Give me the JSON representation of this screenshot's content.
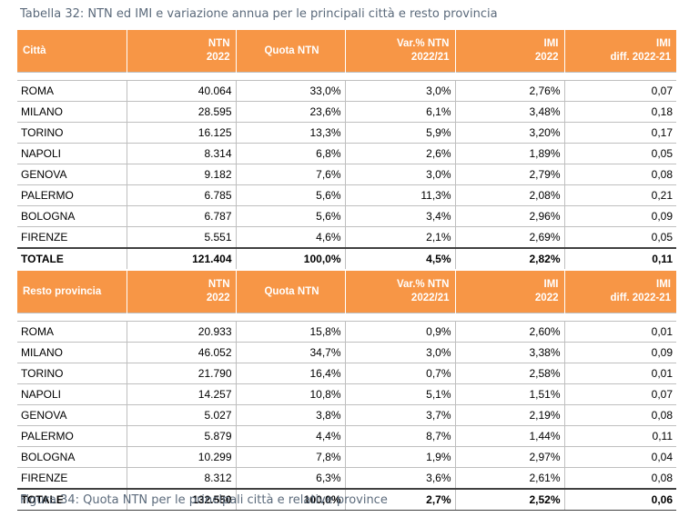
{
  "caption_top": "Tabella 32: NTN ed IMI e variazione annua per le principali città e resto provincia",
  "caption_bottom": "Figura 34: Quota NTN per le principali città e relative province",
  "header_city": {
    "c0": "Città",
    "ntn": [
      "NTN",
      "2022"
    ],
    "quota": "Quota NTN",
    "var": [
      "Var.% NTN",
      "2022/21"
    ],
    "imi": [
      "IMI",
      "2022"
    ],
    "diff": [
      "IMI",
      "diff. 2022-21"
    ]
  },
  "header_prov": {
    "c0": "Resto provincia",
    "ntn": [
      "NTN",
      "2022"
    ],
    "quota": "Quota NTN",
    "var": [
      "Var.% NTN",
      "2022/21"
    ],
    "imi": [
      "IMI",
      "2022"
    ],
    "diff": [
      "IMI",
      "diff. 2022-21"
    ]
  },
  "city_rows": [
    [
      "ROMA",
      "40.064",
      "33,0%",
      "3,0%",
      "2,76%",
      "0,07"
    ],
    [
      "MILANO",
      "28.595",
      "23,6%",
      "6,1%",
      "3,48%",
      "0,18"
    ],
    [
      "TORINO",
      "16.125",
      "13,3%",
      "5,9%",
      "3,20%",
      "0,17"
    ],
    [
      "NAPOLI",
      "8.314",
      "6,8%",
      "2,6%",
      "1,89%",
      "0,05"
    ],
    [
      "GENOVA",
      "9.182",
      "7,6%",
      "3,0%",
      "2,79%",
      "0,08"
    ],
    [
      "PALERMO",
      "6.785",
      "5,6%",
      "11,3%",
      "2,08%",
      "0,21"
    ],
    [
      "BOLOGNA",
      "6.787",
      "5,6%",
      "3,4%",
      "2,96%",
      "0,09"
    ],
    [
      "FIRENZE",
      "5.551",
      "4,6%",
      "2,1%",
      "2,69%",
      "0,05"
    ]
  ],
  "city_total": [
    "TOTALE",
    "121.404",
    "100,0%",
    "4,5%",
    "2,82%",
    "0,11"
  ],
  "prov_rows": [
    [
      "ROMA",
      "20.933",
      "15,8%",
      "0,9%",
      "2,60%",
      "0,01"
    ],
    [
      "MILANO",
      "46.052",
      "34,7%",
      "3,0%",
      "3,38%",
      "0,09"
    ],
    [
      "TORINO",
      "21.790",
      "16,4%",
      "0,7%",
      "2,58%",
      "0,01"
    ],
    [
      "NAPOLI",
      "14.257",
      "10,8%",
      "5,1%",
      "1,51%",
      "0,07"
    ],
    [
      "GENOVA",
      "5.027",
      "3,8%",
      "3,7%",
      "2,19%",
      "0,08"
    ],
    [
      "PALERMO",
      "5.879",
      "4,4%",
      "8,7%",
      "1,44%",
      "0,11"
    ],
    [
      "BOLOGNA",
      "10.299",
      "7,8%",
      "1,9%",
      "2,97%",
      "0,04"
    ],
    [
      "FIRENZE",
      "8.312",
      "6,3%",
      "3,6%",
      "2,61%",
      "0,08"
    ]
  ],
  "prov_total": [
    "TOTALE",
    "132.550",
    "100,0%",
    "2,7%",
    "2,52%",
    "0,06"
  ],
  "colors": {
    "header_bg": "#f79646",
    "header_text": "#ffffff",
    "caption": "#5b6a7b"
  }
}
